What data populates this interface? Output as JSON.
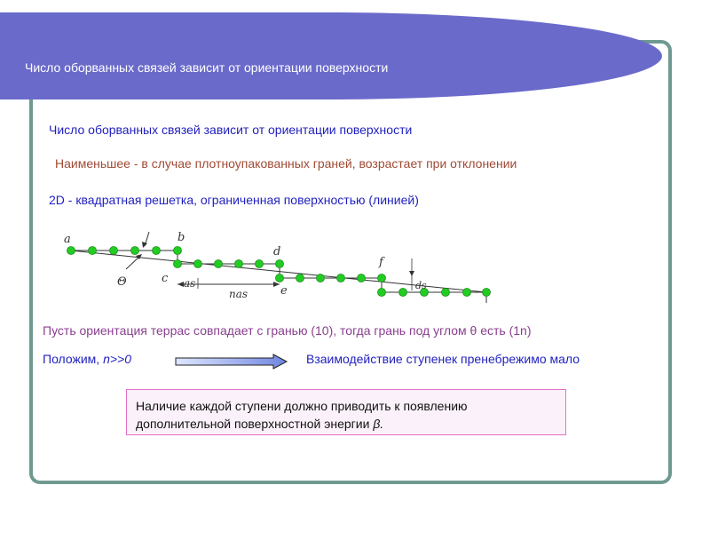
{
  "header": {
    "title": "Число оборванных связей зависит от ориентации поверхности"
  },
  "content": {
    "line1": "Число оборванных связей зависит от ориентации поверхности",
    "line2": "Наименьшее - в случае плотноупакованных граней, возрастает при отклонении",
    "line3": "2D - квадратная решетка, ограниченная поверхностью (линией)"
  },
  "diagram": {
    "labels": {
      "a": "a",
      "b": "b",
      "c": "c",
      "d": "d",
      "e": "e",
      "f": "f",
      "theta": "Θ",
      "as": "as",
      "nas": "nas",
      "ds": "ds"
    }
  },
  "terraces": {
    "text": "Пусть ориентация террас совпадает с гранью (10), тогда грань под углом θ есть (1n)",
    "assume_prefix": "Положим, ",
    "assume_cond": "n>>0",
    "result": "Взаимодействие ступенек пренебрежимо мало"
  },
  "note": {
    "line1": "Наличие каждой ступени должно приводить к появлению",
    "line2_prefix": "дополнительной поверхностной энергии ",
    "line2_symbol": "β."
  },
  "colors": {
    "header": "#6a6acb",
    "frame": "#6f9a91",
    "node": "#22cc22",
    "blue_text": "#1f1fbf",
    "brown_text": "#a04a34",
    "purple_text": "#8a3f8f"
  }
}
